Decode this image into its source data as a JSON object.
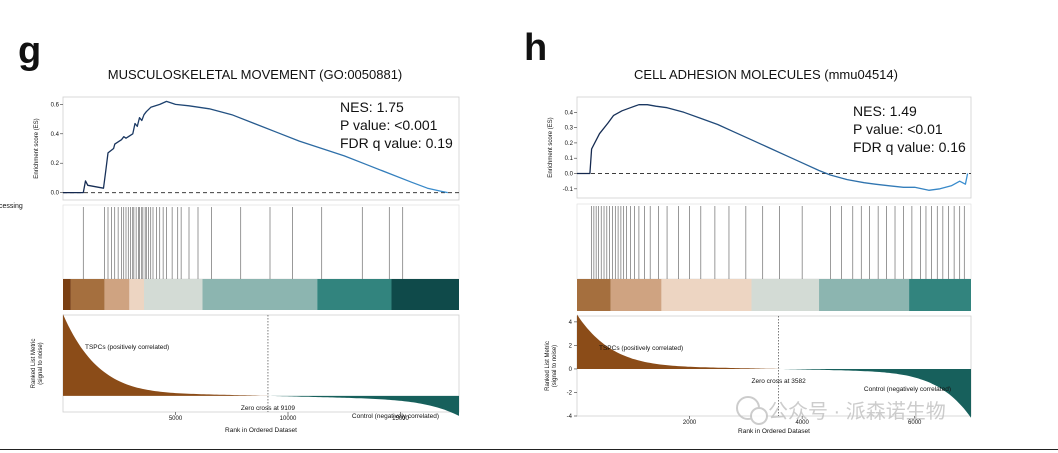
{
  "colors": {
    "es_early": "#13254a",
    "es_late": "#3a8fd1",
    "zero_line": "#222222",
    "hit_line": "#555555",
    "positive_fill": "#8b4c18",
    "negative_fill": "#17605c",
    "crossing_line": "#444444",
    "watermark": "#c4c4c4"
  },
  "side_fragment": "cessing",
  "watermark": "公众号 · 派森诺生物",
  "chart_data": [
    {
      "type": "line",
      "panel_letter": "g",
      "title": "MUSCULOSKELETAL MOVEMENT (GO:0050881)",
      "ylabel": "Enrichment score (ES)",
      "stats": [
        "NES: 1.75",
        "P value: <0.001",
        "FDR q value: 0.19"
      ],
      "rank_max": 17600,
      "ylim": [
        -0.05,
        0.65
      ],
      "yticks": [
        0.0,
        0.2,
        0.4,
        0.6
      ],
      "ytick_labels": [
        "0.0",
        "0.2",
        "0.4",
        "0.6"
      ],
      "es_curve": {
        "x": [
          0,
          900,
          1000,
          1100,
          1800,
          1900,
          2000,
          2250,
          2300,
          2600,
          2700,
          2800,
          3100,
          3200,
          3300,
          3400,
          3500,
          3600,
          3700,
          3900,
          4300,
          4600,
          5000,
          5600,
          6500,
          7500,
          8500,
          9500,
          10500,
          11500,
          12500,
          13500,
          14500,
          15500,
          16200,
          16800,
          17100
        ],
        "y": [
          0.0,
          0.0,
          0.08,
          0.05,
          0.03,
          0.15,
          0.27,
          0.3,
          0.33,
          0.36,
          0.38,
          0.37,
          0.4,
          0.47,
          0.45,
          0.51,
          0.49,
          0.53,
          0.55,
          0.58,
          0.6,
          0.62,
          0.6,
          0.59,
          0.57,
          0.53,
          0.47,
          0.41,
          0.35,
          0.3,
          0.25,
          0.19,
          0.13,
          0.07,
          0.03,
          0.01,
          0.0
        ]
      },
      "hits": [
        900,
        1850,
        2000,
        2150,
        2300,
        2450,
        2600,
        2700,
        2800,
        2900,
        3000,
        3100,
        3150,
        3250,
        3350,
        3400,
        3500,
        3550,
        3650,
        3700,
        3800,
        3900,
        4000,
        4150,
        4300,
        4450,
        4600,
        4850,
        5100,
        5250,
        5600,
        6000,
        6600,
        7900,
        9200,
        10200,
        11500,
        13300,
        14500,
        15100
      ],
      "heatmap_colors": [
        "#7a3f13",
        "#a56f3e",
        "#cfa381",
        "#edd5c2",
        "#d3dbd5",
        "#8cb5b0",
        "#32847e",
        "#0f4a4a"
      ],
      "heatmap_bounds": [
        0,
        350,
        1850,
        2950,
        3600,
        6200,
        11300,
        14600,
        17600
      ],
      "rank_metric": {
        "positive_label": "TSPCs (positively correlated)",
        "negative_label": "Control (negatively correlated)",
        "zero_cross": 9109,
        "zero_cross_label": "Zero cross at 9109",
        "ylim": [
          -1.2,
          6
        ],
        "ylabel_lines": [
          "Ranked List Metric",
          "(signal to noise)"
        ],
        "xlabel": "Rank in Ordered Dataset",
        "xticks": [
          5000,
          10000,
          15000
        ],
        "xtick_labels": [
          "5000",
          "10000",
          "15000"
        ]
      }
    },
    {
      "type": "line",
      "panel_letter": "h",
      "title": "CELL ADHESION MOLECULES (mmu04514)",
      "ylabel": "Enrichment score (ES)",
      "stats": [
        "NES: 1.49",
        "P value: <0.01",
        "FDR q value: 0.16"
      ],
      "rank_max": 7000,
      "ylim": [
        -0.16,
        0.5
      ],
      "yticks": [
        -0.1,
        0.0,
        0.1,
        0.2,
        0.3,
        0.4
      ],
      "ytick_labels": [
        "-0.1",
        "0.0",
        "0.1",
        "0.2",
        "0.3",
        "0.4"
      ],
      "es_curve": {
        "x": [
          0,
          230,
          260,
          400,
          550,
          650,
          800,
          950,
          1100,
          1250,
          1400,
          1600,
          1900,
          2200,
          2500,
          2800,
          3100,
          3400,
          3700,
          4000,
          4300,
          4500,
          4800,
          5100,
          5300,
          5550,
          5800,
          6000,
          6250,
          6450,
          6650,
          6800,
          6900,
          6940
        ],
        "y": [
          0.0,
          0.0,
          0.16,
          0.26,
          0.33,
          0.38,
          0.41,
          0.43,
          0.45,
          0.45,
          0.44,
          0.43,
          0.4,
          0.36,
          0.32,
          0.27,
          0.22,
          0.17,
          0.12,
          0.07,
          0.02,
          -0.01,
          -0.04,
          -0.06,
          -0.07,
          -0.08,
          -0.09,
          -0.09,
          -0.11,
          -0.1,
          -0.08,
          -0.05,
          -0.07,
          0.0
        ]
      },
      "hits": [
        260,
        300,
        340,
        380,
        430,
        480,
        530,
        580,
        630,
        680,
        730,
        780,
        830,
        880,
        950,
        1020,
        1100,
        1200,
        1300,
        1450,
        1600,
        1800,
        2000,
        2200,
        2450,
        2700,
        3000,
        3300,
        3600,
        4000,
        4500,
        4700,
        4900,
        5050,
        5200,
        5350,
        5500,
        5650,
        5800,
        5950,
        6100,
        6200,
        6300,
        6400,
        6500,
        6600,
        6700,
        6800,
        6880
      ],
      "heatmap_colors": [
        "#a56f3e",
        "#cfa381",
        "#edd5c2",
        "#d3dbd5",
        "#8cb5b0",
        "#32847e"
      ],
      "heatmap_bounds": [
        0,
        600,
        1500,
        3100,
        4300,
        5900,
        7000
      ],
      "rank_metric": {
        "positive_label": "TSPCs (positively correlated)",
        "negative_label": "Control (negatively correlated)",
        "zero_cross": 3582,
        "zero_cross_label": "Zero cross at 3582",
        "ylim": [
          -4,
          4.5
        ],
        "yticks": [
          -4,
          -2,
          0,
          2,
          4
        ],
        "ytick_labels": [
          "-4",
          "-2",
          "0",
          "2",
          "4"
        ],
        "ylabel_lines": [
          "Ranked List Metric",
          "(signal to noise)"
        ],
        "xlabel": "Rank in Ordered Dataset",
        "xticks": [
          2000,
          4000,
          6000
        ],
        "xtick_labels": [
          "2000",
          "4000",
          "6000"
        ]
      }
    }
  ]
}
